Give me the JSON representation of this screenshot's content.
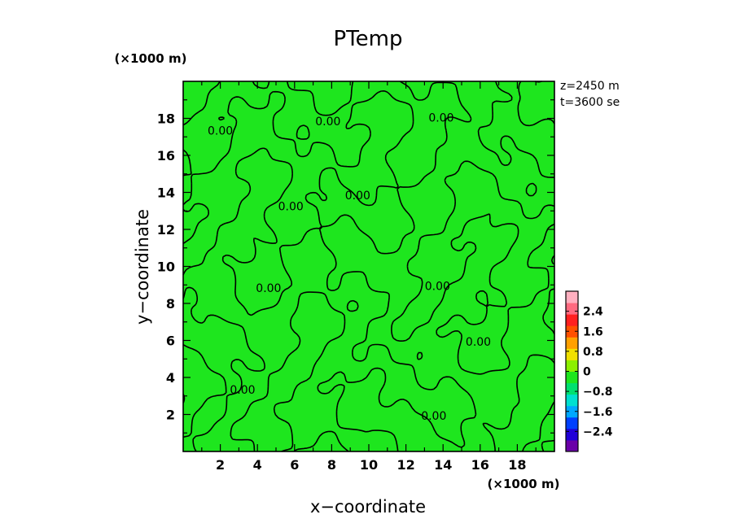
{
  "chart_data": {
    "type": "contour",
    "title": "PTemp",
    "xlabel": "x−coordinate",
    "ylabel": "y−coordinate",
    "x_unit": "(×1000 m)",
    "y_unit": "(×1000 m)",
    "xlim": [
      0,
      20
    ],
    "ylim": [
      0,
      20
    ],
    "x_ticks": [
      2,
      4,
      6,
      8,
      10,
      12,
      14,
      16,
      18
    ],
    "y_ticks": [
      2,
      4,
      6,
      8,
      10,
      12,
      14,
      16,
      18
    ],
    "info": [
      "z=2450 m",
      "t=3600 se"
    ],
    "fill_color": "#1ee61e",
    "contour_level": 0.0,
    "contour_labels": [
      {
        "text": "0.00",
        "x": 2.0,
        "y": 17.3
      },
      {
        "text": "0.00",
        "x": 7.8,
        "y": 17.8
      },
      {
        "text": "0.00",
        "x": 5.8,
        "y": 13.2
      },
      {
        "text": "0.00",
        "x": 9.4,
        "y": 13.8
      },
      {
        "text": "0.00",
        "x": 13.9,
        "y": 18.0
      },
      {
        "text": "0.00",
        "x": 4.6,
        "y": 8.8
      },
      {
        "text": "0.00",
        "x": 13.7,
        "y": 8.9
      },
      {
        "text": "0.00",
        "x": 15.9,
        "y": 5.9
      },
      {
        "text": "0.00",
        "x": 3.2,
        "y": 3.3
      },
      {
        "text": "0.00",
        "x": 13.5,
        "y": 1.9
      }
    ],
    "colorbar": {
      "tick_labels": [
        "2.4",
        "1.6",
        "0.8",
        "0",
        "−0.8",
        "−1.6",
        "−2.4"
      ],
      "tick_values": [
        2.4,
        1.6,
        0.8,
        0,
        -0.8,
        -1.6,
        -2.4
      ],
      "range": [
        -3.2,
        3.2
      ],
      "colors": [
        "#6a00a8",
        "#2000d8",
        "#0040ff",
        "#00a8ff",
        "#00e0d0",
        "#00e070",
        "#1ee61e",
        "#8cf000",
        "#f0e000",
        "#ffa000",
        "#ff5000",
        "#ff2020",
        "#ff6a80",
        "#ffb0c0"
      ]
    }
  }
}
